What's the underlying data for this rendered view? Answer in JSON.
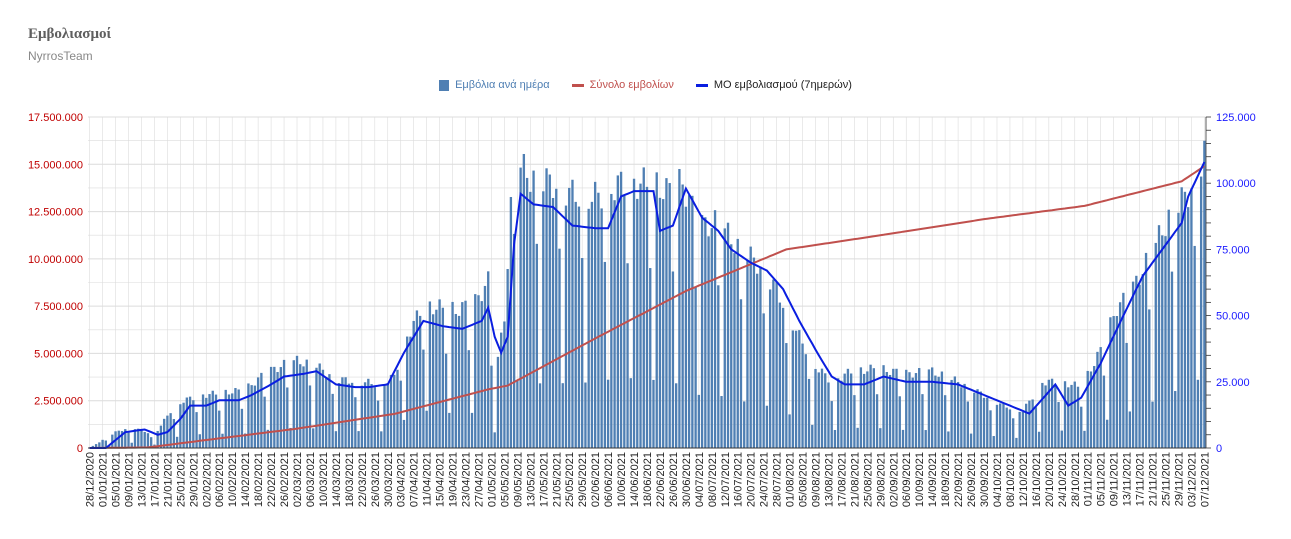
{
  "title": "Εμβολιασμοί",
  "subtitle": "NyrrosTeam",
  "colors": {
    "bars": "#4f7fb3",
    "cumulative": "#c0504d",
    "average": "#0a1ee0",
    "left_axis": "#c00000",
    "right_axis": "#1a1aff",
    "grid": "#dcdcdc"
  },
  "chart_data": {
    "type": "bar",
    "series": [
      {
        "name": "Εμβόλια ανά ημέρα",
        "type": "bar",
        "axis": "left",
        "color": "#4f7fb3"
      },
      {
        "name": "Σύνολο εμβολίων",
        "type": "line",
        "axis": "left",
        "color": "#c0504d"
      },
      {
        "name": "ΜΟ εμβολιασμού (7ημερών)",
        "type": "line",
        "axis": "right",
        "color": "#0a1ee0"
      }
    ],
    "x_start": "2020-12-28",
    "x_end": "2021-12-07",
    "x_tick_labels": [
      "28/12/2020",
      "01/01/2021",
      "05/01/2021",
      "09/01/2021",
      "13/01/2021",
      "17/01/2021",
      "21/01/2021",
      "25/01/2021",
      "29/01/2021",
      "02/02/2021",
      "06/02/2021",
      "10/02/2021",
      "14/02/2021",
      "18/02/2021",
      "22/02/2021",
      "26/02/2021",
      "02/03/2021",
      "06/03/2021",
      "10/03/2021",
      "14/03/2021",
      "18/03/2021",
      "22/03/2021",
      "26/03/2021",
      "30/03/2021",
      "03/04/2021",
      "07/04/2021",
      "11/04/2021",
      "15/04/2021",
      "19/04/2021",
      "23/04/2021",
      "27/04/2021",
      "01/05/2021",
      "05/05/2021",
      "09/05/2021",
      "13/05/2021",
      "17/05/2021",
      "21/05/2021",
      "25/05/2021",
      "29/05/2021",
      "02/06/2021",
      "06/06/2021",
      "10/06/2021",
      "14/06/2021",
      "18/06/2021",
      "22/06/2021",
      "26/06/2021",
      "30/06/2021",
      "04/07/2021",
      "08/07/2021",
      "12/07/2021",
      "16/07/2021",
      "20/07/2021",
      "24/07/2021",
      "28/07/2021",
      "01/08/2021",
      "05/08/2021",
      "09/08/2021",
      "13/08/2021",
      "17/08/2021",
      "21/08/2021",
      "25/08/2021",
      "29/08/2021",
      "02/09/2021",
      "06/09/2021",
      "10/09/2021",
      "14/09/2021",
      "18/09/2021",
      "22/09/2021",
      "26/09/2021",
      "30/09/2021",
      "04/10/2021",
      "08/10/2021",
      "12/10/2021",
      "16/10/2021",
      "20/10/2021",
      "24/10/2021",
      "28/10/2021",
      "01/11/2021",
      "05/11/2021",
      "09/11/2021",
      "13/11/2021",
      "17/11/2021",
      "21/11/2021",
      "25/11/2021",
      "29/11/2021",
      "03/12/2021",
      "07/12/2021"
    ],
    "left_axis": {
      "ticks": [
        "0",
        "2.500.000",
        "5.000.000",
        "7.500.000",
        "10.000.000",
        "12.500.000",
        "15.000.000",
        "17.500.000"
      ],
      "range": [
        0,
        17500000
      ]
    },
    "right_axis": {
      "ticks": [
        "0",
        "25.000",
        "50.000",
        "75.000",
        "100.000",
        "125.000"
      ],
      "range": [
        0,
        125000
      ]
    },
    "daily_anchors": [
      [
        "2020-12-28",
        0
      ],
      [
        "2021-01-01",
        3000
      ],
      [
        "2021-01-05",
        6000
      ],
      [
        "2021-01-10",
        8000
      ],
      [
        "2021-01-17",
        5000
      ],
      [
        "2021-01-22",
        14000
      ],
      [
        "2021-01-26",
        18000
      ],
      [
        "2021-02-01",
        20000
      ],
      [
        "2021-02-08",
        21000
      ],
      [
        "2021-02-14",
        22000
      ],
      [
        "2021-02-20",
        28000
      ],
      [
        "2021-02-25",
        31000
      ],
      [
        "2021-03-02",
        33000
      ],
      [
        "2021-03-08",
        31000
      ],
      [
        "2021-03-14",
        26000
      ],
      [
        "2021-03-22",
        25000
      ],
      [
        "2021-03-28",
        24000
      ],
      [
        "2021-04-01",
        27000
      ],
      [
        "2021-04-04",
        40000
      ],
      [
        "2021-04-10",
        54000
      ],
      [
        "2021-04-20",
        52000
      ],
      [
        "2021-04-26",
        55000
      ],
      [
        "2021-04-30",
        63000
      ],
      [
        "2021-05-02",
        25000
      ],
      [
        "2021-05-05",
        50000
      ],
      [
        "2021-05-08",
        110000
      ],
      [
        "2021-05-12",
        103000
      ],
      [
        "2021-05-20",
        100000
      ],
      [
        "2021-05-26",
        96000
      ],
      [
        "2021-06-02",
        95000
      ],
      [
        "2021-06-10",
        100000
      ],
      [
        "2021-06-20",
        100000
      ],
      [
        "2021-06-24",
        97000
      ],
      [
        "2021-06-29",
        100000
      ],
      [
        "2021-07-04",
        84000
      ],
      [
        "2021-07-10",
        85000
      ],
      [
        "2021-07-16",
        76000
      ],
      [
        "2021-07-22",
        70000
      ],
      [
        "2021-07-28",
        60000
      ],
      [
        "2021-08-04",
        42000
      ],
      [
        "2021-08-09",
        31000
      ],
      [
        "2021-08-14",
        25000
      ],
      [
        "2021-08-20",
        29000
      ],
      [
        "2021-08-28",
        30000
      ],
      [
        "2021-09-06",
        28000
      ],
      [
        "2021-09-14",
        29000
      ],
      [
        "2021-09-22",
        25000
      ],
      [
        "2021-09-30",
        20000
      ],
      [
        "2021-10-06",
        16000
      ],
      [
        "2021-10-12",
        14000
      ],
      [
        "2021-10-18",
        25000
      ],
      [
        "2021-10-24",
        25000
      ],
      [
        "2021-10-30",
        23000
      ],
      [
        "2021-11-05",
        37000
      ],
      [
        "2021-11-10",
        53000
      ],
      [
        "2021-11-14",
        58000
      ],
      [
        "2021-11-20",
        72000
      ],
      [
        "2021-11-26",
        87000
      ],
      [
        "2021-12-01",
        95000
      ],
      [
        "2021-12-04",
        100000
      ],
      [
        "2021-12-07",
        113000
      ]
    ],
    "average_anchors": [
      [
        "2020-12-28",
        0
      ],
      [
        "2021-01-02",
        0
      ],
      [
        "2021-01-04",
        2000
      ],
      [
        "2021-01-08",
        6000
      ],
      [
        "2021-01-14",
        7000
      ],
      [
        "2021-01-18",
        5000
      ],
      [
        "2021-01-21",
        6000
      ],
      [
        "2021-01-25",
        11000
      ],
      [
        "2021-01-28",
        16000
      ],
      [
        "2021-02-02",
        16000
      ],
      [
        "2021-02-06",
        18000
      ],
      [
        "2021-02-12",
        18000
      ],
      [
        "2021-02-16",
        20000
      ],
      [
        "2021-02-22",
        24000
      ],
      [
        "2021-02-26",
        27000
      ],
      [
        "2021-03-04",
        28000
      ],
      [
        "2021-03-08",
        29000
      ],
      [
        "2021-03-14",
        24000
      ],
      [
        "2021-03-20",
        23000
      ],
      [
        "2021-03-24",
        23000
      ],
      [
        "2021-03-30",
        24000
      ],
      [
        "2021-04-04",
        36000
      ],
      [
        "2021-04-10",
        48000
      ],
      [
        "2021-04-16",
        46000
      ],
      [
        "2021-04-22",
        45000
      ],
      [
        "2021-04-28",
        48000
      ],
      [
        "2021-04-30",
        53000
      ],
      [
        "2021-05-02",
        42000
      ],
      [
        "2021-05-04",
        36000
      ],
      [
        "2021-05-06",
        42000
      ],
      [
        "2021-05-08",
        77000
      ],
      [
        "2021-05-10",
        96000
      ],
      [
        "2021-05-14",
        92000
      ],
      [
        "2021-05-20",
        91000
      ],
      [
        "2021-05-26",
        84000
      ],
      [
        "2021-06-02",
        83000
      ],
      [
        "2021-06-06",
        83000
      ],
      [
        "2021-06-10",
        95000
      ],
      [
        "2021-06-14",
        97000
      ],
      [
        "2021-06-20",
        97000
      ],
      [
        "2021-06-22",
        82000
      ],
      [
        "2021-06-26",
        84000
      ],
      [
        "2021-06-30",
        98000
      ],
      [
        "2021-07-05",
        87000
      ],
      [
        "2021-07-10",
        82000
      ],
      [
        "2021-07-14",
        75000
      ],
      [
        "2021-07-20",
        70000
      ],
      [
        "2021-07-25",
        67000
      ],
      [
        "2021-07-30",
        60000
      ],
      [
        "2021-08-04",
        48000
      ],
      [
        "2021-08-10",
        35000
      ],
      [
        "2021-08-14",
        27000
      ],
      [
        "2021-08-18",
        24000
      ],
      [
        "2021-08-24",
        24000
      ],
      [
        "2021-08-30",
        27000
      ],
      [
        "2021-09-06",
        25000
      ],
      [
        "2021-09-14",
        25000
      ],
      [
        "2021-09-22",
        24000
      ],
      [
        "2021-09-28",
        21000
      ],
      [
        "2021-10-04",
        18000
      ],
      [
        "2021-10-08",
        16000
      ],
      [
        "2021-10-14",
        13000
      ],
      [
        "2021-10-22",
        24000
      ],
      [
        "2021-10-26",
        16000
      ],
      [
        "2021-10-30",
        19000
      ],
      [
        "2021-11-05",
        32000
      ],
      [
        "2021-11-12",
        50000
      ],
      [
        "2021-11-18",
        65000
      ],
      [
        "2021-11-24",
        75000
      ],
      [
        "2021-11-30",
        85000
      ],
      [
        "2021-12-02",
        95000
      ],
      [
        "2021-12-07",
        108000
      ]
    ],
    "cumulative_anchors": [
      [
        "2020-12-28",
        0
      ],
      [
        "2021-01-15",
        30000
      ],
      [
        "2021-02-01",
        400000
      ],
      [
        "2021-03-01",
        1000000
      ],
      [
        "2021-04-01",
        1800000
      ],
      [
        "2021-04-30",
        3100000
      ],
      [
        "2021-05-06",
        3300000
      ],
      [
        "2021-06-01",
        5700000
      ],
      [
        "2021-06-30",
        8300000
      ],
      [
        "2021-07-31",
        10500000
      ],
      [
        "2021-08-31",
        11300000
      ],
      [
        "2021-09-30",
        12100000
      ],
      [
        "2021-10-31",
        12800000
      ],
      [
        "2021-11-30",
        14100000
      ],
      [
        "2021-12-07",
        14900000
      ]
    ],
    "grid": true,
    "legend_position": "top-center"
  }
}
